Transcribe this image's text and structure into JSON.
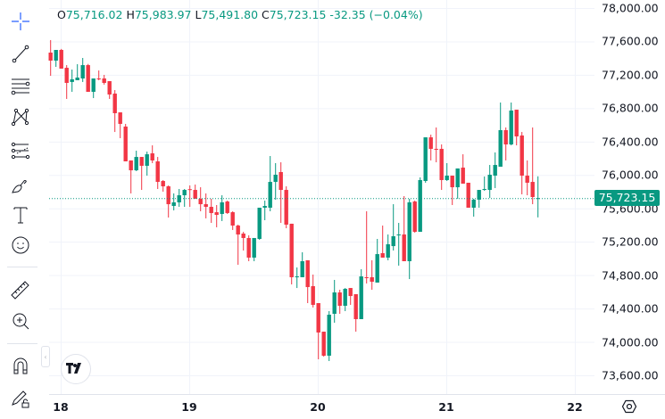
{
  "legend": {
    "open_label": "O",
    "open": "75,716.02",
    "high_label": "H",
    "high": "75,983.97",
    "low_label": "L",
    "low": "75,491.80",
    "close_label": "C",
    "close": "75,723.15",
    "change": "-32.35 (−0.04%)"
  },
  "last_price_label": "75,723.15",
  "logo_text": "TV",
  "toolbar": [
    "crosshair-icon",
    "trend-line-icon",
    "fib-retracement-icon",
    "pattern-icon",
    "forecast-icon",
    "brush-icon",
    "text-icon",
    "emoji-icon",
    "ruler-icon",
    "zoom-in-icon",
    "magnet-icon",
    "lock-drawings-icon"
  ],
  "colors": {
    "up": "#089981",
    "down": "#f23645",
    "grid": "#f0f3fa",
    "text": "#131722"
  },
  "chart_data": {
    "type": "candlestick",
    "interval": "1h",
    "grid": true,
    "ylim": [
      73600,
      78000
    ],
    "y_ticks": [
      "78,000.00",
      "77,600.00",
      "77,200.00",
      "76,800.00",
      "76,400.00",
      "76,000.00",
      "75,600.00",
      "75,200.00",
      "74,800.00",
      "74,400.00",
      "74,000.00",
      "73,600.00"
    ],
    "y_tick_values": [
      78000,
      77600,
      77200,
      76800,
      76400,
      76000,
      75600,
      75200,
      74800,
      74400,
      74000,
      73600
    ],
    "x_ticks": [
      "18",
      "19",
      "20",
      "21",
      "22"
    ],
    "last_price": 75723.15,
    "ohlc": [
      [
        77466,
        77616,
        77188,
        77370
      ],
      [
        77370,
        77498,
        77295,
        77498
      ],
      [
        77498,
        77510,
        77274,
        77274
      ],
      [
        77284,
        77316,
        76911,
        77103
      ],
      [
        77114,
        77263,
        76996,
        77146
      ],
      [
        77135,
        77327,
        77135,
        77167
      ],
      [
        77156,
        77402,
        77114,
        77316
      ],
      [
        77316,
        77330,
        76996,
        76996
      ],
      [
        76996,
        77156,
        76921,
        77156
      ],
      [
        77156,
        77252,
        77135,
        77146
      ],
      [
        77156,
        77199,
        77082,
        77103
      ],
      [
        77124,
        77124,
        76911,
        76964
      ],
      [
        76975,
        77017,
        76515,
        76740
      ],
      [
        76750,
        76750,
        76441,
        76612
      ],
      [
        76580,
        76612,
        76163,
        76163
      ],
      [
        76174,
        76174,
        75779,
        76056
      ],
      [
        76056,
        76291,
        76046,
        76216
      ],
      [
        76216,
        76216,
        75821,
        76110
      ],
      [
        76110,
        76280,
        75992,
        76248
      ],
      [
        76259,
        76355,
        76142,
        76174
      ],
      [
        76163,
        76216,
        75832,
        75917
      ],
      [
        75928,
        75939,
        75800,
        75864
      ],
      [
        75864,
        75875,
        75490,
        75650
      ],
      [
        75629,
        75779,
        75576,
        75672
      ],
      [
        75672,
        75832,
        75618,
        75757
      ],
      [
        75757,
        75832,
        75618,
        75821
      ],
      [
        75830,
        75875,
        75618,
        75821
      ],
      [
        75821,
        75885,
        75715,
        75715
      ],
      [
        75715,
        75853,
        75565,
        75650
      ],
      [
        75650,
        75779,
        75480,
        75618
      ],
      [
        75618,
        75715,
        75426,
        75544
      ],
      [
        75554,
        75640,
        75373,
        75522
      ],
      [
        75533,
        75757,
        75448,
        75672
      ],
      [
        75682,
        75693,
        75533,
        75544
      ],
      [
        75554,
        75565,
        75341,
        75394
      ],
      [
        75394,
        75405,
        74924,
        75287
      ],
      [
        75298,
        75319,
        75095,
        75245
      ],
      [
        75245,
        75277,
        74967,
        75010
      ],
      [
        75010,
        75245,
        74967,
        75245
      ],
      [
        75234,
        75608,
        75223,
        75608
      ],
      [
        75608,
        75693,
        75458,
        75629
      ],
      [
        75608,
        76227,
        75565,
        75917
      ],
      [
        75917,
        76142,
        75704,
        76003
      ],
      [
        76035,
        76152,
        75426,
        75821
      ],
      [
        75821,
        75864,
        75362,
        75405
      ],
      [
        75416,
        75416,
        74689,
        74775
      ],
      [
        74775,
        74892,
        74646,
        74785
      ],
      [
        74775,
        75074,
        74775,
        74967
      ],
      [
        74978,
        74978,
        74465,
        74657
      ],
      [
        74668,
        74807,
        74412,
        74444
      ],
      [
        74465,
        74465,
        73792,
        74113
      ],
      [
        74123,
        74123,
        73824,
        73835
      ],
      [
        73835,
        74369,
        73771,
        74326
      ],
      [
        74337,
        74743,
        74230,
        74593
      ],
      [
        74593,
        74625,
        74337,
        74433
      ],
      [
        74433,
        74646,
        74369,
        74636
      ],
      [
        74646,
        74646,
        74444,
        74550
      ],
      [
        74572,
        74572,
        74123,
        74273
      ],
      [
        74273,
        74871,
        74273,
        74785
      ],
      [
        74775,
        75565,
        74700,
        74764
      ],
      [
        74775,
        74978,
        74625,
        74721
      ],
      [
        74711,
        75234,
        74711,
        75052
      ],
      [
        75063,
        75394,
        75010,
        75010
      ],
      [
        75010,
        75287,
        74978,
        75170
      ],
      [
        75148,
        75650,
        75095,
        75266
      ],
      [
        75277,
        75426,
        74914,
        75287
      ],
      [
        75287,
        75747,
        74967,
        74967
      ],
      [
        74967,
        75715,
        74753,
        75672
      ],
      [
        75682,
        75693,
        75309,
        75319
      ],
      [
        75319,
        75971,
        75319,
        75939
      ],
      [
        75928,
        76451,
        75907,
        76451
      ],
      [
        76451,
        76483,
        76174,
        76313
      ],
      [
        76313,
        76569,
        76152,
        76302
      ],
      [
        76313,
        76366,
        75821,
        75939
      ],
      [
        75939,
        76142,
        75928,
        75992
      ],
      [
        75992,
        75992,
        75640,
        75853
      ],
      [
        75853,
        76078,
        75715,
        76078
      ],
      [
        76088,
        76248,
        75896,
        75896
      ],
      [
        75907,
        75907,
        75608,
        75608
      ],
      [
        75608,
        75715,
        75501,
        75704
      ],
      [
        75704,
        75821,
        75608,
        75821
      ],
      [
        75821,
        75982,
        75810,
        75832
      ],
      [
        75821,
        76120,
        75725,
        76003
      ],
      [
        75992,
        76270,
        75843,
        76120
      ],
      [
        76099,
        76868,
        76099,
        76537
      ],
      [
        76537,
        76569,
        76174,
        76366
      ],
      [
        76366,
        76868,
        76355,
        76772
      ],
      [
        76782,
        76782,
        76355,
        76462
      ],
      [
        76473,
        76515,
        75768,
        75992
      ],
      [
        75992,
        76174,
        75757,
        75907
      ],
      [
        75917,
        76569,
        75650,
        75736
      ],
      [
        75716.02,
        75983.97,
        75491.8,
        75723.15
      ]
    ]
  }
}
